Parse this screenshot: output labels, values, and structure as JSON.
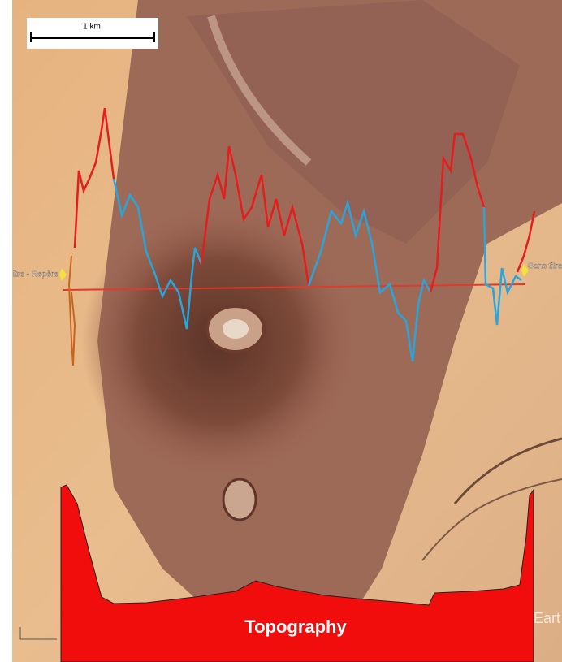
{
  "scale_bar": {
    "label": "1 km"
  },
  "markers": [
    {
      "label": "itre - Repère"
    },
    {
      "label": "Sans titre -"
    }
  ],
  "topography": {
    "label": "Topography"
  },
  "watermark": "Eart"
}
